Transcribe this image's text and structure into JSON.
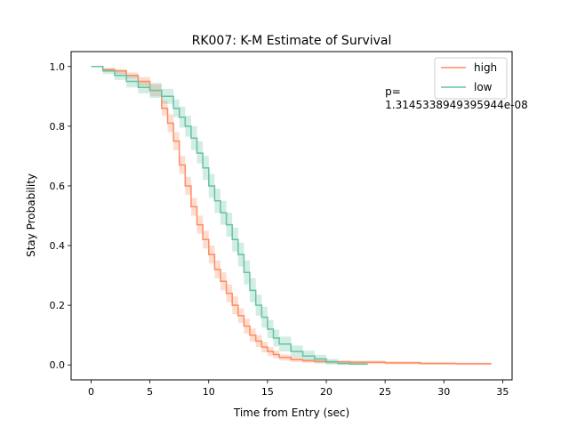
{
  "chart_data": {
    "type": "line",
    "title": "RK007: K-M Estimate of Survival",
    "xlabel": "Time from Entry (sec)",
    "ylabel": "Stay Probability",
    "xlim": [
      -1.7,
      35.8
    ],
    "ylim": [
      -0.05,
      1.05
    ],
    "xticks": [
      0,
      5,
      10,
      15,
      20,
      25,
      30,
      35
    ],
    "yticks": [
      0.0,
      0.2,
      0.4,
      0.6,
      0.8,
      1.0
    ],
    "xtick_labels": [
      "0",
      "5",
      "10",
      "15",
      "20",
      "25",
      "30",
      "35"
    ],
    "ytick_labels": [
      "0.0",
      "0.2",
      "0.4",
      "0.6",
      "0.8",
      "1.0"
    ],
    "grid": false,
    "legend_position": "top-right",
    "annotation": {
      "line1": "p=",
      "line2": "1.3145338949395944e-08",
      "x": 25.0,
      "y": 0.88
    },
    "series": [
      {
        "name": "high",
        "color": "#fc8d62",
        "x": [
          0,
          1,
          2,
          3,
          4,
          5,
          6,
          6.5,
          7,
          7.5,
          8,
          8.5,
          9,
          9.5,
          10,
          10.5,
          11,
          11.5,
          12,
          12.5,
          13,
          13.5,
          14,
          14.5,
          15,
          15.5,
          16,
          17,
          18,
          19,
          20,
          22,
          25,
          28,
          31,
          34
        ],
        "y": [
          1.0,
          0.99,
          0.985,
          0.97,
          0.95,
          0.92,
          0.86,
          0.81,
          0.75,
          0.67,
          0.6,
          0.53,
          0.47,
          0.42,
          0.37,
          0.32,
          0.28,
          0.24,
          0.2,
          0.165,
          0.13,
          0.1,
          0.08,
          0.06,
          0.045,
          0.035,
          0.025,
          0.018,
          0.014,
          0.012,
          0.01,
          0.009,
          0.007,
          0.005,
          0.004,
          0.003
        ],
        "lower": [
          1.0,
          0.985,
          0.975,
          0.96,
          0.935,
          0.9,
          0.835,
          0.78,
          0.72,
          0.64,
          0.57,
          0.5,
          0.44,
          0.39,
          0.34,
          0.29,
          0.25,
          0.21,
          0.17,
          0.14,
          0.105,
          0.078,
          0.06,
          0.042,
          0.03,
          0.022,
          0.015,
          0.01,
          0.007,
          0.005,
          0.004,
          0.003,
          0.002,
          0.001,
          0.0,
          0.0
        ],
        "upper": [
          1.0,
          0.995,
          0.992,
          0.98,
          0.965,
          0.94,
          0.885,
          0.84,
          0.78,
          0.7,
          0.63,
          0.56,
          0.5,
          0.45,
          0.4,
          0.35,
          0.31,
          0.27,
          0.23,
          0.19,
          0.155,
          0.122,
          0.1,
          0.078,
          0.06,
          0.048,
          0.035,
          0.026,
          0.021,
          0.019,
          0.016,
          0.015,
          0.012,
          0.01,
          0.008,
          0.007
        ]
      },
      {
        "name": "low",
        "color": "#66c2a5",
        "x": [
          0,
          1,
          2,
          3,
          4,
          5,
          6,
          7,
          7.5,
          8,
          8.5,
          9,
          9.5,
          10,
          10.5,
          11,
          11.5,
          12,
          12.5,
          13,
          13.5,
          14,
          14.5,
          15,
          15.5,
          16,
          17,
          18,
          19,
          20,
          21,
          22,
          23.5
        ],
        "y": [
          1.0,
          0.985,
          0.97,
          0.95,
          0.93,
          0.92,
          0.9,
          0.86,
          0.83,
          0.8,
          0.76,
          0.71,
          0.66,
          0.6,
          0.55,
          0.51,
          0.47,
          0.42,
          0.37,
          0.31,
          0.25,
          0.2,
          0.16,
          0.12,
          0.09,
          0.07,
          0.045,
          0.03,
          0.02,
          0.01,
          0.005,
          0.003,
          0.002
        ],
        "lower": [
          1.0,
          0.975,
          0.955,
          0.93,
          0.91,
          0.895,
          0.875,
          0.83,
          0.795,
          0.765,
          0.72,
          0.675,
          0.62,
          0.56,
          0.51,
          0.47,
          0.43,
          0.38,
          0.33,
          0.27,
          0.21,
          0.165,
          0.125,
          0.09,
          0.062,
          0.045,
          0.025,
          0.012,
          0.006,
          0.001,
          0.0,
          0.0,
          0.0
        ],
        "upper": [
          1.0,
          0.993,
          0.985,
          0.97,
          0.95,
          0.945,
          0.925,
          0.89,
          0.865,
          0.835,
          0.8,
          0.75,
          0.7,
          0.64,
          0.59,
          0.55,
          0.51,
          0.46,
          0.41,
          0.35,
          0.29,
          0.235,
          0.195,
          0.15,
          0.118,
          0.095,
          0.065,
          0.048,
          0.034,
          0.02,
          0.012,
          0.008,
          0.006
        ]
      }
    ]
  }
}
